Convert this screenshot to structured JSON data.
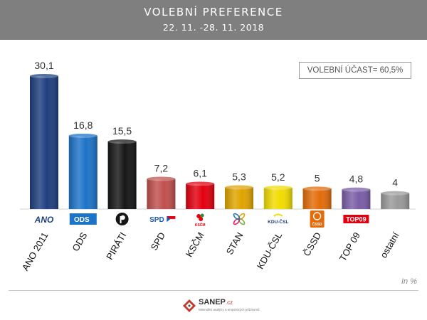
{
  "header": {
    "title": "VOLEBNÍ PREFERENCE",
    "subtitle": "22. 11. -28. 11. 2018"
  },
  "turnout_label": "VOLEBNÍ ÚČAST= 60,5%",
  "unit_label": "In %",
  "footer": {
    "brand": "SANEP",
    "domain": ".cz",
    "tagline": "Minimální analýzy a empirických průzkumů"
  },
  "chart_data": {
    "type": "bar",
    "categories": [
      "ANO 2011",
      "ODS",
      "PIRÁTI",
      "SPD",
      "KSČM",
      "STAN",
      "KDU-ČSL",
      "ČSSD",
      "TOP 09",
      "ostatní"
    ],
    "values": [
      30.1,
      16.8,
      15.5,
      7.2,
      6.1,
      5.3,
      5.2,
      5,
      4.8,
      4
    ],
    "value_labels": [
      "30,1",
      "16,8",
      "15,5",
      "7,2",
      "6,1",
      "5,3",
      "5,2",
      "5",
      "4,8",
      "4"
    ],
    "colors": [
      "#1f3f80",
      "#1d73c8",
      "#161616",
      "#c0504d",
      "#e3000f",
      "#e0a400",
      "#f2dc00",
      "#e36c09",
      "#7b5ea7",
      "#9a9a9a"
    ],
    "logo_texts": [
      "ANO",
      "ODS",
      "",
      "SPD",
      "KSČM",
      "",
      "KDU-ČSL",
      "ČSSD",
      "TOP09",
      ""
    ],
    "logo_colors": [
      "#1f3f80",
      "#1d73c8",
      "#161616",
      "#1d5bb5",
      "#e3000f",
      "#e0a400",
      "#1f3f80",
      "#e36c09",
      "#e3000f",
      "#ffffff"
    ],
    "ylim": [
      0,
      32
    ],
    "grid": false,
    "legend": false
  }
}
